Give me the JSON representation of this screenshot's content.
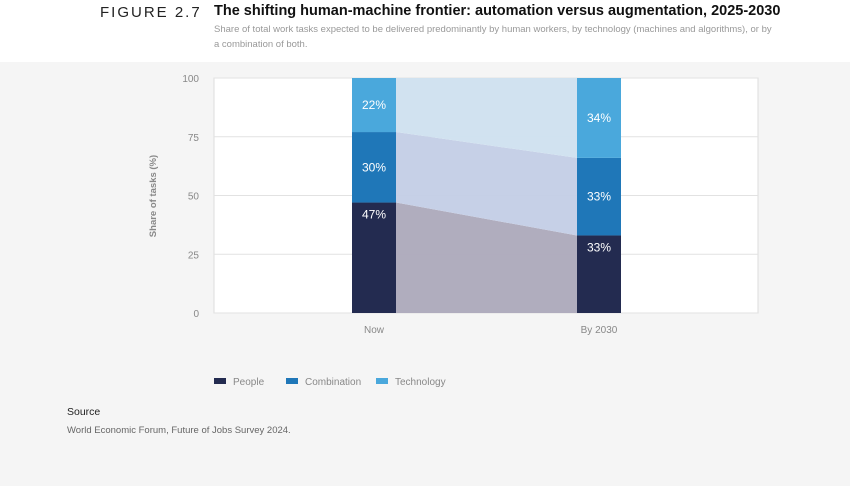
{
  "header": {
    "figure_label": "FIGURE 2.7",
    "title": "The shifting human-machine frontier: automation versus augmentation, 2025-2030",
    "subtitle": "Share of total work tasks expected to be delivered predominantly by human workers, by technology (machines and algorithms), or by a combination of both."
  },
  "chart_data": {
    "type": "bar",
    "stacked": true,
    "categories": [
      "Now",
      "By 2030"
    ],
    "series": [
      {
        "name": "People",
        "values": [
          47,
          33
        ],
        "labels": [
          "47%",
          "33%"
        ],
        "color": "#232b50"
      },
      {
        "name": "Combination",
        "values": [
          30,
          33
        ],
        "labels": [
          "30%",
          "33%"
        ],
        "color": "#1f77b8"
      },
      {
        "name": "Technology",
        "values": [
          22,
          34
        ],
        "labels": [
          "22%",
          "34%"
        ],
        "color": "#4aa8dc"
      }
    ],
    "ylabel": "Share of tasks (%)",
    "ylim": [
      0,
      100
    ],
    "yticks": [
      "0",
      "25",
      "50",
      "75",
      "100"
    ],
    "grid": true,
    "legend": "bottom-left"
  },
  "source": {
    "heading": "Source",
    "text": "World Economic Forum, Future of Jobs Survey 2024."
  }
}
